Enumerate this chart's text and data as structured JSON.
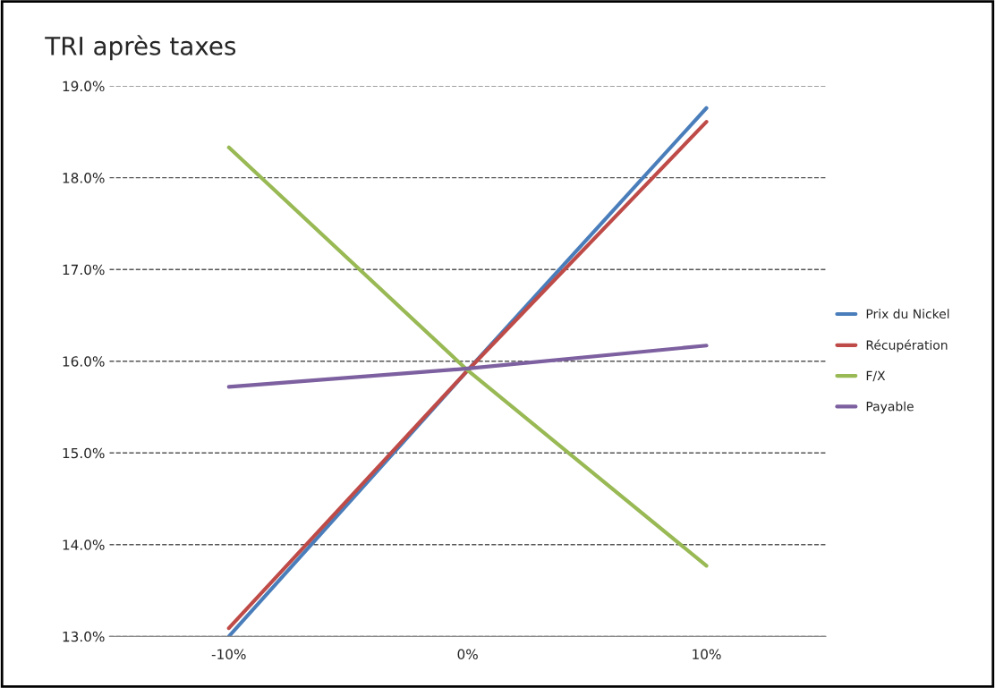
{
  "chart_data": {
    "type": "line",
    "title": "TRI après taxes",
    "categories": [
      "-10%",
      "0%",
      "10%"
    ],
    "series": [
      {
        "name": "Prix du Nickel",
        "color": "#4a7ebb",
        "values": [
          13.0,
          15.9,
          18.76
        ]
      },
      {
        "name": "Récupération",
        "color": "#be4b48",
        "values": [
          13.09,
          15.9,
          18.61
        ]
      },
      {
        "name": "F/X",
        "color": "#98b954",
        "values": [
          18.33,
          15.9,
          13.77
        ]
      },
      {
        "name": "Payable",
        "color": "#7d60a0",
        "values": [
          15.72,
          15.92,
          16.17
        ]
      }
    ],
    "ylim": [
      13.0,
      19.0
    ],
    "yticks": [
      {
        "value": 13.0,
        "label": "13.0%"
      },
      {
        "value": 14.0,
        "label": "14.0%"
      },
      {
        "value": 15.0,
        "label": "15.0%"
      },
      {
        "value": 16.0,
        "label": "16.0%"
      },
      {
        "value": 17.0,
        "label": "17.0%"
      },
      {
        "value": 18.0,
        "label": "18.0%"
      },
      {
        "value": 19.0,
        "label": "19.0%"
      }
    ],
    "grid": "y",
    "legend": "right",
    "marker": "none",
    "line_style": "solid"
  }
}
